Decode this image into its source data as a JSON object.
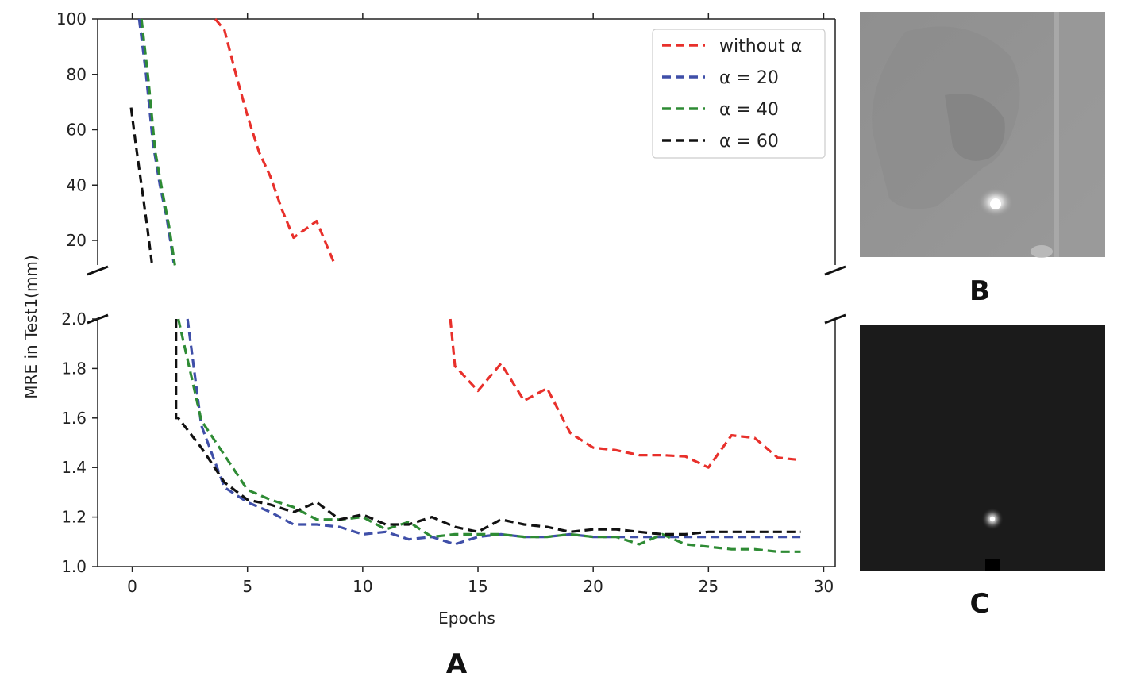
{
  "chart_data": {
    "type": "line",
    "xlabel": "Epochs",
    "ylabel": "MRE in Test1(mm)",
    "xlim": [
      -1.5,
      30.5
    ],
    "x_ticks": [
      "0",
      "5",
      "10",
      "15",
      "20",
      "25",
      "30"
    ],
    "broken_y_axis": true,
    "upper_ylim": [
      10,
      100
    ],
    "upper_y_ticks": [
      "20",
      "40",
      "60",
      "80",
      "100"
    ],
    "lower_ylim": [
      1.0,
      2.0
    ],
    "lower_y_ticks": [
      "1.0",
      "1.2",
      "1.4",
      "1.6",
      "1.8",
      "2.0"
    ],
    "legend_position": "top-right",
    "line_style": "dashed",
    "series": [
      {
        "name": "without α",
        "color": "#e8302b",
        "upper": {
          "x": [
            3.6,
            4,
            4.5,
            5,
            5.5,
            6,
            6.5,
            7,
            7.5,
            8,
            8.5,
            8.8
          ],
          "y": [
            100,
            96,
            80,
            65,
            52,
            43,
            31,
            21,
            24,
            27,
            17,
            11
          ]
        },
        "lower": {
          "x": [
            13.8,
            14,
            15,
            16,
            17,
            18,
            19,
            20,
            21,
            22,
            23,
            24,
            25,
            26,
            27,
            28,
            29
          ],
          "y": [
            2.0,
            1.81,
            1.71,
            1.82,
            1.67,
            1.72,
            1.54,
            1.48,
            1.47,
            1.45,
            1.45,
            1.445,
            1.4,
            1.53,
            1.52,
            1.44,
            1.43
          ]
        }
      },
      {
        "name": "α = 20",
        "color": "#3f4fa8",
        "upper": {
          "x": [
            0.3,
            0.6,
            0.9,
            1.2,
            1.5,
            1.8
          ],
          "y": [
            100,
            80,
            55,
            40,
            28,
            12
          ]
        },
        "lower": {
          "x": [
            2.4,
            3,
            4,
            5,
            6,
            7,
            8,
            9,
            10,
            11,
            12,
            13,
            14,
            15,
            16,
            17,
            18,
            19,
            20,
            21,
            22,
            23,
            24,
            25,
            26,
            27,
            28,
            29
          ],
          "y": [
            2.0,
            1.57,
            1.32,
            1.26,
            1.22,
            1.17,
            1.17,
            1.16,
            1.13,
            1.14,
            1.11,
            1.12,
            1.09,
            1.12,
            1.13,
            1.12,
            1.12,
            1.13,
            1.12,
            1.12,
            1.12,
            1.12,
            1.12,
            1.12,
            1.12,
            1.12,
            1.12,
            1.12
          ]
        }
      },
      {
        "name": "α = 40",
        "color": "#2e8b34",
        "upper": {
          "x": [
            0.4,
            0.7,
            1.0,
            1.3,
            1.6,
            1.85
          ],
          "y": [
            100,
            78,
            52,
            38,
            25,
            11
          ]
        },
        "lower": {
          "x": [
            2.0,
            3,
            4,
            5,
            6,
            7,
            8,
            9,
            10,
            11,
            12,
            13,
            14,
            15,
            16,
            17,
            18,
            19,
            20,
            21,
            22,
            23,
            24,
            25,
            26,
            27,
            28,
            29
          ],
          "y": [
            2.0,
            1.59,
            1.45,
            1.31,
            1.27,
            1.24,
            1.19,
            1.19,
            1.2,
            1.15,
            1.18,
            1.12,
            1.13,
            1.13,
            1.13,
            1.12,
            1.12,
            1.13,
            1.12,
            1.12,
            1.09,
            1.13,
            1.09,
            1.08,
            1.07,
            1.07,
            1.06,
            1.06
          ]
        }
      },
      {
        "name": "α = 60",
        "color": "#111111",
        "upper": {
          "x": [
            -0.05,
            0.15,
            0.4,
            0.65,
            0.85
          ],
          "y": [
            68,
            55,
            40,
            25,
            12
          ]
        },
        "lower": {
          "x": [
            1.9,
            1.9,
            2,
            3,
            4,
            5,
            6,
            7,
            8,
            9,
            10,
            11,
            12,
            13,
            14,
            15,
            16,
            17,
            18,
            19,
            20,
            21,
            22,
            23,
            24,
            25,
            26,
            27,
            28,
            29
          ],
          "y": [
            2.0,
            1.6,
            1.6,
            1.48,
            1.34,
            1.27,
            1.25,
            1.22,
            1.26,
            1.19,
            1.21,
            1.17,
            1.17,
            1.2,
            1.16,
            1.14,
            1.19,
            1.17,
            1.16,
            1.14,
            1.15,
            1.15,
            1.14,
            1.13,
            1.13,
            1.14,
            1.14,
            1.14,
            1.14,
            1.14
          ]
        }
      }
    ]
  },
  "panels": {
    "a_label": "A",
    "b_label": "B",
    "c_label": "C"
  },
  "images": {
    "b_image": "grayscale-xray-heatmap",
    "c_image": "dark-heatmap-with-bright-spot"
  }
}
